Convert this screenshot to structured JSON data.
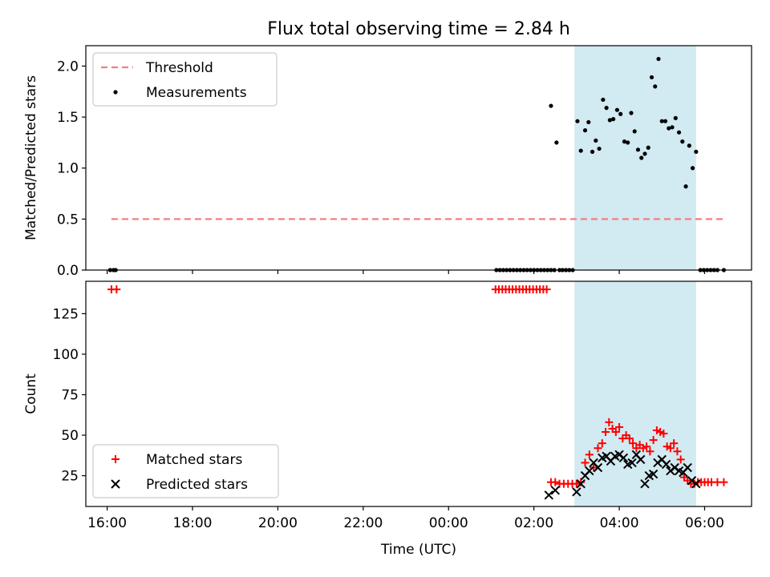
{
  "title": "Flux total observing time = 2.84 h",
  "colors": {
    "threshold": "#f08080",
    "measurement": "#000000",
    "matched": "#ff0000",
    "predicted": "#000000",
    "span": "#add8e6"
  },
  "chart_data": [
    {
      "type": "scatter",
      "ylabel": "Matched/Predicted stars",
      "xlabel": "",
      "xlim": [
        15.5,
        31.1
      ],
      "ylim": [
        0,
        2.2
      ],
      "yticks": [
        0.0,
        0.5,
        1.0,
        1.5,
        2.0
      ],
      "ytick_labels": [
        "0.0",
        "0.5",
        "1.0",
        "1.5",
        "2.0"
      ],
      "shaded_span": [
        26.95,
        29.8
      ],
      "legend": {
        "position": "upper-left",
        "entries": [
          "Threshold",
          "Measurements"
        ]
      },
      "threshold": {
        "name": "Threshold",
        "y": 0.5,
        "x": [
          16.1,
          30.5
        ]
      },
      "series": [
        {
          "name": "Measurements",
          "x": [
            16.07,
            16.15,
            16.2,
            25.12,
            25.2,
            25.28,
            25.36,
            25.44,
            25.52,
            25.6,
            25.68,
            25.76,
            25.84,
            25.92,
            26.0,
            26.08,
            26.16,
            26.24,
            26.32,
            26.4,
            26.48,
            26.6,
            26.67,
            26.75,
            26.83,
            26.91,
            26.4,
            26.53,
            27.02,
            27.1,
            27.2,
            27.28,
            27.37,
            27.45,
            27.53,
            27.62,
            27.7,
            27.78,
            27.86,
            27.95,
            28.03,
            28.12,
            28.2,
            28.28,
            28.36,
            28.44,
            28.52,
            28.6,
            28.68,
            28.76,
            28.84,
            28.92,
            29.0,
            29.08,
            29.16,
            29.24,
            29.32,
            29.4,
            29.48,
            29.56,
            29.64,
            29.72,
            29.8,
            29.9,
            29.98,
            30.06,
            30.14,
            30.22,
            30.3,
            30.45
          ],
          "y": [
            0,
            0,
            0,
            0,
            0,
            0,
            0,
            0,
            0,
            0,
            0,
            0,
            0,
            0,
            0,
            0,
            0,
            0,
            0,
            0,
            0,
            0,
            0,
            0,
            0,
            0,
            1.61,
            1.25,
            1.46,
            1.17,
            1.37,
            1.45,
            1.16,
            1.27,
            1.19,
            1.67,
            1.59,
            1.47,
            1.48,
            1.57,
            1.53,
            1.26,
            1.25,
            1.54,
            1.36,
            1.18,
            1.1,
            1.14,
            1.2,
            1.89,
            1.8,
            2.07,
            1.46,
            1.46,
            1.39,
            1.4,
            1.49,
            1.35,
            1.26,
            0.82,
            1.22,
            1.0,
            1.16,
            0,
            0,
            0,
            0,
            0,
            0,
            0
          ]
        }
      ]
    },
    {
      "type": "scatter",
      "ylabel": "Count",
      "xlabel": "Time (UTC)",
      "xlim": [
        15.5,
        31.1
      ],
      "ylim": [
        6,
        145
      ],
      "yticks": [
        25,
        50,
        75,
        100,
        125
      ],
      "ytick_labels": [
        "25",
        "50",
        "75",
        "100",
        "125"
      ],
      "xticks": [
        16,
        18,
        20,
        22,
        24,
        26,
        28,
        30
      ],
      "xtick_labels": [
        "16:00",
        "18:00",
        "20:00",
        "22:00",
        "00:00",
        "02:00",
        "04:00",
        "06:00"
      ],
      "shaded_span": [
        26.95,
        29.8
      ],
      "legend": {
        "position": "lower-left",
        "entries": [
          "Matched stars",
          "Predicted stars"
        ]
      },
      "series": [
        {
          "name": "Matched stars",
          "marker": "plus",
          "x": [
            16.1,
            16.22,
            25.1,
            25.18,
            25.26,
            25.34,
            25.42,
            25.5,
            25.58,
            25.66,
            25.74,
            25.82,
            25.9,
            25.98,
            26.06,
            26.14,
            26.22,
            26.3,
            26.4,
            26.5,
            26.6,
            26.7,
            26.8,
            26.9,
            27.0,
            27.1,
            27.2,
            27.3,
            27.4,
            27.5,
            27.6,
            27.68,
            27.76,
            27.84,
            27.92,
            28.0,
            28.08,
            28.16,
            28.24,
            28.32,
            28.4,
            28.48,
            28.56,
            28.64,
            28.72,
            28.8,
            28.88,
            28.96,
            29.04,
            29.12,
            29.2,
            29.28,
            29.36,
            29.44,
            29.52,
            29.6,
            29.68,
            29.76,
            29.84,
            29.92,
            30.0,
            30.08,
            30.16,
            30.3,
            30.45
          ],
          "y": [
            140,
            140,
            140,
            140,
            140,
            140,
            140,
            140,
            140,
            140,
            140,
            140,
            140,
            140,
            140,
            140,
            140,
            140,
            21,
            21,
            20,
            20,
            20,
            20,
            20,
            21,
            33,
            38,
            30,
            42,
            45,
            52,
            58,
            54,
            52,
            55,
            48,
            50,
            48,
            45,
            42,
            44,
            42,
            43,
            40,
            47,
            53,
            52,
            51,
            43,
            42,
            45,
            40,
            35,
            24,
            22,
            20,
            20,
            21,
            21,
            21,
            21,
            21,
            21,
            21
          ]
        },
        {
          "name": "Predicted stars",
          "marker": "x",
          "x": [
            26.35,
            26.5,
            27.0,
            27.1,
            27.2,
            27.3,
            27.4,
            27.5,
            27.6,
            27.7,
            27.8,
            27.9,
            28.0,
            28.1,
            28.2,
            28.3,
            28.4,
            28.5,
            28.6,
            28.7,
            28.8,
            28.9,
            29.0,
            29.1,
            29.2,
            29.3,
            29.4,
            29.5,
            29.6,
            29.7,
            29.8
          ],
          "y": [
            13,
            16,
            15,
            20,
            25,
            28,
            33,
            30,
            36,
            37,
            34,
            37,
            38,
            36,
            32,
            33,
            38,
            35,
            20,
            25,
            26,
            33,
            35,
            32,
            28,
            30,
            28,
            27,
            30,
            22,
            20
          ]
        }
      ]
    }
  ]
}
